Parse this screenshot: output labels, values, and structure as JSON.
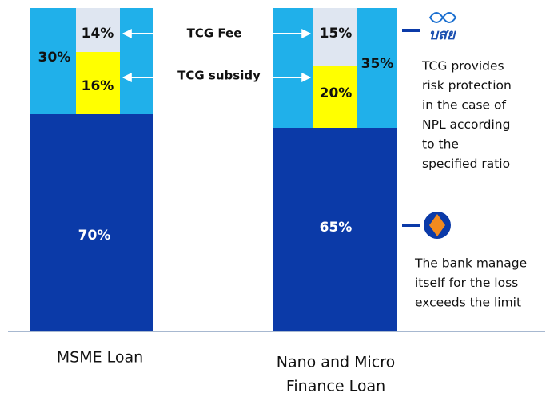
{
  "bars": [
    {
      "label": [
        "MSME Loan"
      ],
      "bank_share": "70%",
      "tcg_share": "30%",
      "fee": "14%",
      "subsidy": "16%"
    },
    {
      "label": [
        "Nano and Micro",
        "Finance Loan"
      ],
      "bank_share": "65%",
      "tcg_share": "35%",
      "fee": "15%",
      "subsidy": "20%"
    }
  ],
  "annotations": {
    "fee": "TCG Fee",
    "subsidy": "TCG subsidy"
  },
  "legend": {
    "tcg": {
      "logo": "บสย",
      "text": [
        "TCG provides",
        "risk protection",
        "in the case of",
        "NPL according",
        "to the",
        "specified ratio"
      ]
    },
    "bank": {
      "text": [
        "The bank manage",
        "itself for the loss",
        "exceeds the limit"
      ]
    }
  }
}
